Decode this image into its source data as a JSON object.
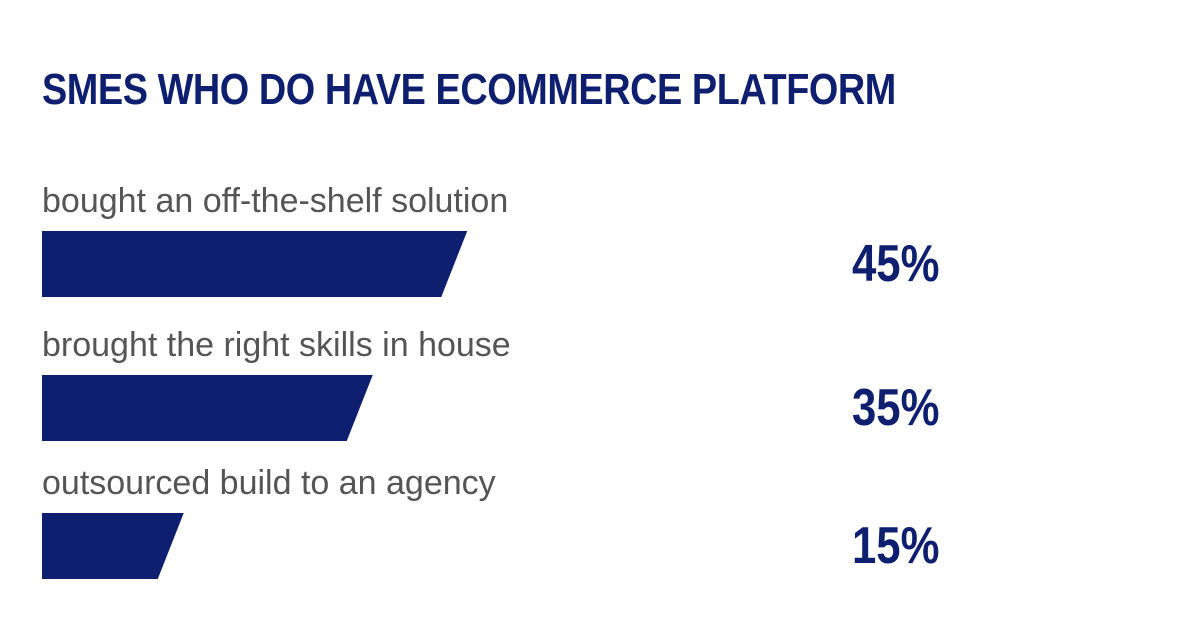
{
  "chart_data": {
    "type": "bar",
    "orientation": "horizontal",
    "title": "SMES WHO DO HAVE ECOMMERCE PLATFORM",
    "categories": [
      "bought an off-the-shelf solution",
      "brought the right skills in house",
      "outsourced build to an agency"
    ],
    "values": [
      45,
      35,
      15
    ],
    "value_labels": [
      "45%",
      "35%",
      "15%"
    ],
    "unit": "%",
    "xlim": [
      0,
      100
    ],
    "grid": false,
    "legend": "none",
    "colors": {
      "bar": "#0d1f6e",
      "title": "#0d1f6e",
      "category_text": "#555555",
      "value_text": "#0d1f6e",
      "background": "#ffffff"
    }
  }
}
